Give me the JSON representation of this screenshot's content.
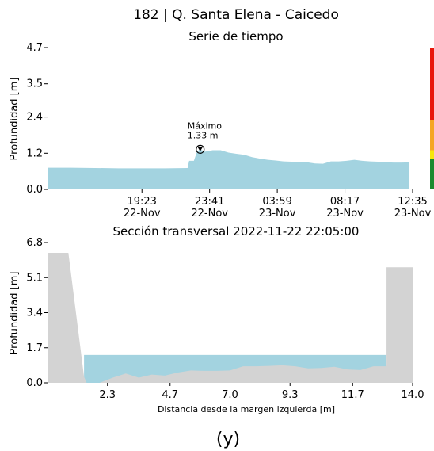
{
  "figure": {
    "title": "182 | Q. Santa Elena - Caicedo",
    "panel_label": "(y)"
  },
  "chart_data": [
    {
      "type": "area",
      "title": "Serie de tiempo",
      "xlabel": "",
      "ylabel": "Profundidad [m]",
      "ylim": [
        0,
        4.7
      ],
      "y_ticks": [
        "4.7",
        "3.5",
        "2.4",
        "1.2",
        "0.0"
      ],
      "y_tick_values": [
        4.7,
        3.5,
        2.4,
        1.2,
        0.0
      ],
      "x_ticks": [
        {
          "time": "19:23",
          "date": "22-Nov",
          "hours": 3
        },
        {
          "time": "23:41",
          "date": "22-Nov",
          "hours": 7.3
        },
        {
          "time": "03:59",
          "date": "23-Nov",
          "hours": 11.6
        },
        {
          "time": "08:17",
          "date": "23-Nov",
          "hours": 15.9
        },
        {
          "time": "12:35",
          "date": "23-Nov",
          "hours": 20.2
        }
      ],
      "xlim": [
        -3,
        20.2
      ],
      "fill_color": "#a3d3e0",
      "series": [
        {
          "x": [
            -3,
            -1.5,
            0,
            1.5,
            3,
            4.5,
            5.9,
            6.0,
            6.3,
            6.5,
            6.7,
            7.0,
            7.5,
            8.0,
            8.5,
            9.0,
            9.5,
            10.0,
            10.5,
            11.0,
            11.5,
            12.0,
            12.5,
            13.0,
            13.5,
            14.0,
            14.5,
            15.0,
            15.5,
            16.0,
            16.5,
            17.0,
            17.5,
            18.0,
            18.5,
            19.0,
            19.5,
            20.0
          ],
          "y": [
            0.72,
            0.72,
            0.71,
            0.7,
            0.7,
            0.7,
            0.71,
            0.95,
            0.95,
            1.25,
            1.33,
            1.25,
            1.3,
            1.3,
            1.22,
            1.18,
            1.15,
            1.07,
            1.02,
            0.98,
            0.96,
            0.93,
            0.92,
            0.91,
            0.9,
            0.86,
            0.85,
            0.93,
            0.93,
            0.95,
            0.98,
            0.95,
            0.93,
            0.92,
            0.9,
            0.89,
            0.89,
            0.9
          ]
        }
      ],
      "annotation": {
        "label": "Máximo",
        "value_text": "1.33 m",
        "x": 6.7,
        "y": 1.33
      },
      "threshold_bar": [
        {
          "from": 0,
          "to": 1.0,
          "color": "#1b8a2e"
        },
        {
          "from": 1.0,
          "to": 1.3,
          "color": "#f6e60c"
        },
        {
          "from": 1.3,
          "to": 2.3,
          "color": "#f5a623"
        },
        {
          "from": 2.3,
          "to": 4.7,
          "color": "#e8170c"
        }
      ]
    },
    {
      "type": "area",
      "title": "Sección transversal 2022-11-22 22:05:00",
      "xlabel": "Distancia desde la margen izquierda [m]",
      "ylabel": "Profundidad [m]",
      "xlim": [
        0,
        14.0
      ],
      "ylim": [
        0,
        6.8
      ],
      "x_ticks": [
        "2.3",
        "4.7",
        "7.0",
        "9.3",
        "11.7",
        "14.0"
      ],
      "x_tick_values": [
        2.3,
        4.7,
        7.0,
        9.3,
        11.7,
        14.0
      ],
      "y_ticks": [
        "6.8",
        "5.1",
        "3.4",
        "1.7",
        "0.0"
      ],
      "y_tick_values": [
        6.8,
        5.1,
        3.4,
        1.7,
        0.0
      ],
      "water_level": 1.35,
      "water_extent": [
        1.4,
        13.0
      ],
      "water_color": "#a3d3e0",
      "ground_color": "#d3d3d3",
      "ground_profile": {
        "x": [
          0,
          0.8,
          1.4,
          1.5,
          2.0,
          2.5,
          3.0,
          3.5,
          4.0,
          4.5,
          5.0,
          5.5,
          6.0,
          6.5,
          7.0,
          7.5,
          8.0,
          8.5,
          9.0,
          9.5,
          10.0,
          10.5,
          11.0,
          11.5,
          12.0,
          12.5,
          13.0,
          14.0
        ],
        "y": [
          6.3,
          6.3,
          0.3,
          0.0,
          0.0,
          0.25,
          0.45,
          0.25,
          0.4,
          0.35,
          0.5,
          0.6,
          0.58,
          0.58,
          0.6,
          0.8,
          0.8,
          0.82,
          0.85,
          0.8,
          0.7,
          0.72,
          0.78,
          0.65,
          0.62,
          0.8,
          0.8,
          5.6
        ]
      },
      "right_wall": {
        "x_from": 13.0,
        "x_to": 14.0,
        "height": 5.6
      }
    }
  ]
}
